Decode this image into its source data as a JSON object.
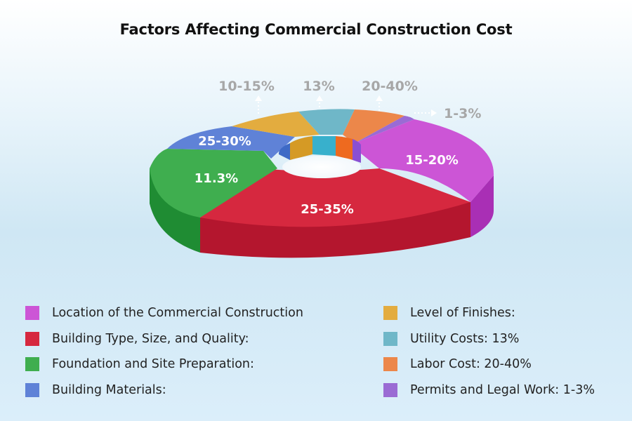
{
  "title": "Factors Affecting Commercial Construction Cost",
  "chart_data": {
    "type": "pie",
    "style": "3d-donut",
    "title": "Factors Affecting Commercial Construction Cost",
    "slices": [
      {
        "id": "location",
        "legend": "Location of the Commercial Construction",
        "label": "15-20%",
        "label_position": "inside",
        "value": 17.5,
        "color": "#cc55d6"
      },
      {
        "id": "building",
        "legend": "Building Type, Size, and Quality:",
        "label": "25-35%",
        "label_position": "inside",
        "value": 30,
        "color": "#d6283f"
      },
      {
        "id": "foundation",
        "legend": "Foundation and Site Preparation:",
        "label": "11.3%",
        "label_position": "inside",
        "value": 11.3,
        "color": "#3fae4f"
      },
      {
        "id": "materials",
        "legend": "Building Materials:",
        "label": "25-30%",
        "label_position": "inside",
        "value": 27.5,
        "color": "#5f82d7"
      },
      {
        "id": "finishes",
        "legend": "Level of Finishes:",
        "label": "10-15%",
        "label_position": "outside",
        "value": 12.5,
        "color": "#e3ac3f"
      },
      {
        "id": "utility",
        "legend": "Utility Costs: 13%",
        "label": "13%",
        "label_position": "outside",
        "value": 13,
        "color": "#6fb7c8"
      },
      {
        "id": "labor",
        "legend": "Labor Cost: 20-40%",
        "label": "20-40%",
        "label_position": "outside",
        "value": 30,
        "color": "#ec874a"
      },
      {
        "id": "permits",
        "legend": "Permits and Legal Work: 1-3%",
        "label": "1-3%",
        "label_position": "outside",
        "value": 2,
        "color": "#9a6bd4"
      }
    ],
    "legend_position": "bottom",
    "legend_columns": [
      [
        "location",
        "building",
        "foundation",
        "materials"
      ],
      [
        "finishes",
        "utility",
        "labor",
        "permits"
      ]
    ]
  }
}
